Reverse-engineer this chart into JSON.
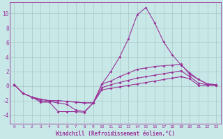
{
  "background_color": "#c8e8e8",
  "grid_color": "#a8c8c8",
  "line_color": "#993399",
  "xlabel": "Windchill (Refroidissement éolien,°C)",
  "xlim": [
    -0.5,
    23.5
  ],
  "ylim": [
    -5.2,
    11.5
  ],
  "yticks": [
    -4,
    -2,
    0,
    2,
    4,
    6,
    8,
    10
  ],
  "xticks": [
    0,
    1,
    2,
    3,
    4,
    5,
    6,
    7,
    8,
    9,
    10,
    11,
    12,
    13,
    14,
    15,
    16,
    17,
    18,
    19,
    20,
    21,
    22,
    23
  ],
  "series": [
    [
      0.2,
      -1.0,
      -1.5,
      -2.2,
      -2.2,
      -3.5,
      -3.5,
      -3.5,
      -3.6,
      -2.3,
      0.3,
      0.7,
      1.3,
      1.8,
      2.3,
      2.5,
      2.7,
      2.8,
      2.9,
      3.0,
      1.6,
      0.9,
      0.3,
      0.2
    ],
    [
      0.2,
      -1.0,
      -1.5,
      -2.0,
      -2.1,
      -2.3,
      -2.5,
      -3.3,
      -3.5,
      -2.3,
      0.3,
      2.0,
      4.0,
      6.5,
      9.8,
      10.8,
      8.7,
      6.1,
      4.3,
      2.9,
      1.8,
      0.9,
      0.3,
      0.2
    ],
    [
      0.2,
      -1.0,
      -1.5,
      -1.8,
      -2.0,
      -2.0,
      -2.1,
      -2.2,
      -2.3,
      -2.3,
      -0.2,
      0.2,
      0.5,
      0.8,
      1.1,
      1.3,
      1.5,
      1.7,
      1.9,
      2.1,
      1.3,
      0.4,
      0.2,
      0.1
    ],
    [
      0.2,
      -1.0,
      -1.5,
      -1.8,
      -2.0,
      -2.0,
      -2.1,
      -2.2,
      -2.3,
      -2.3,
      -0.5,
      -0.3,
      -0.1,
      0.1,
      0.3,
      0.5,
      0.7,
      0.9,
      1.1,
      1.3,
      1.0,
      0.1,
      0.1,
      0.1
    ]
  ],
  "figsize": [
    3.2,
    2.0
  ],
  "dpi": 100
}
